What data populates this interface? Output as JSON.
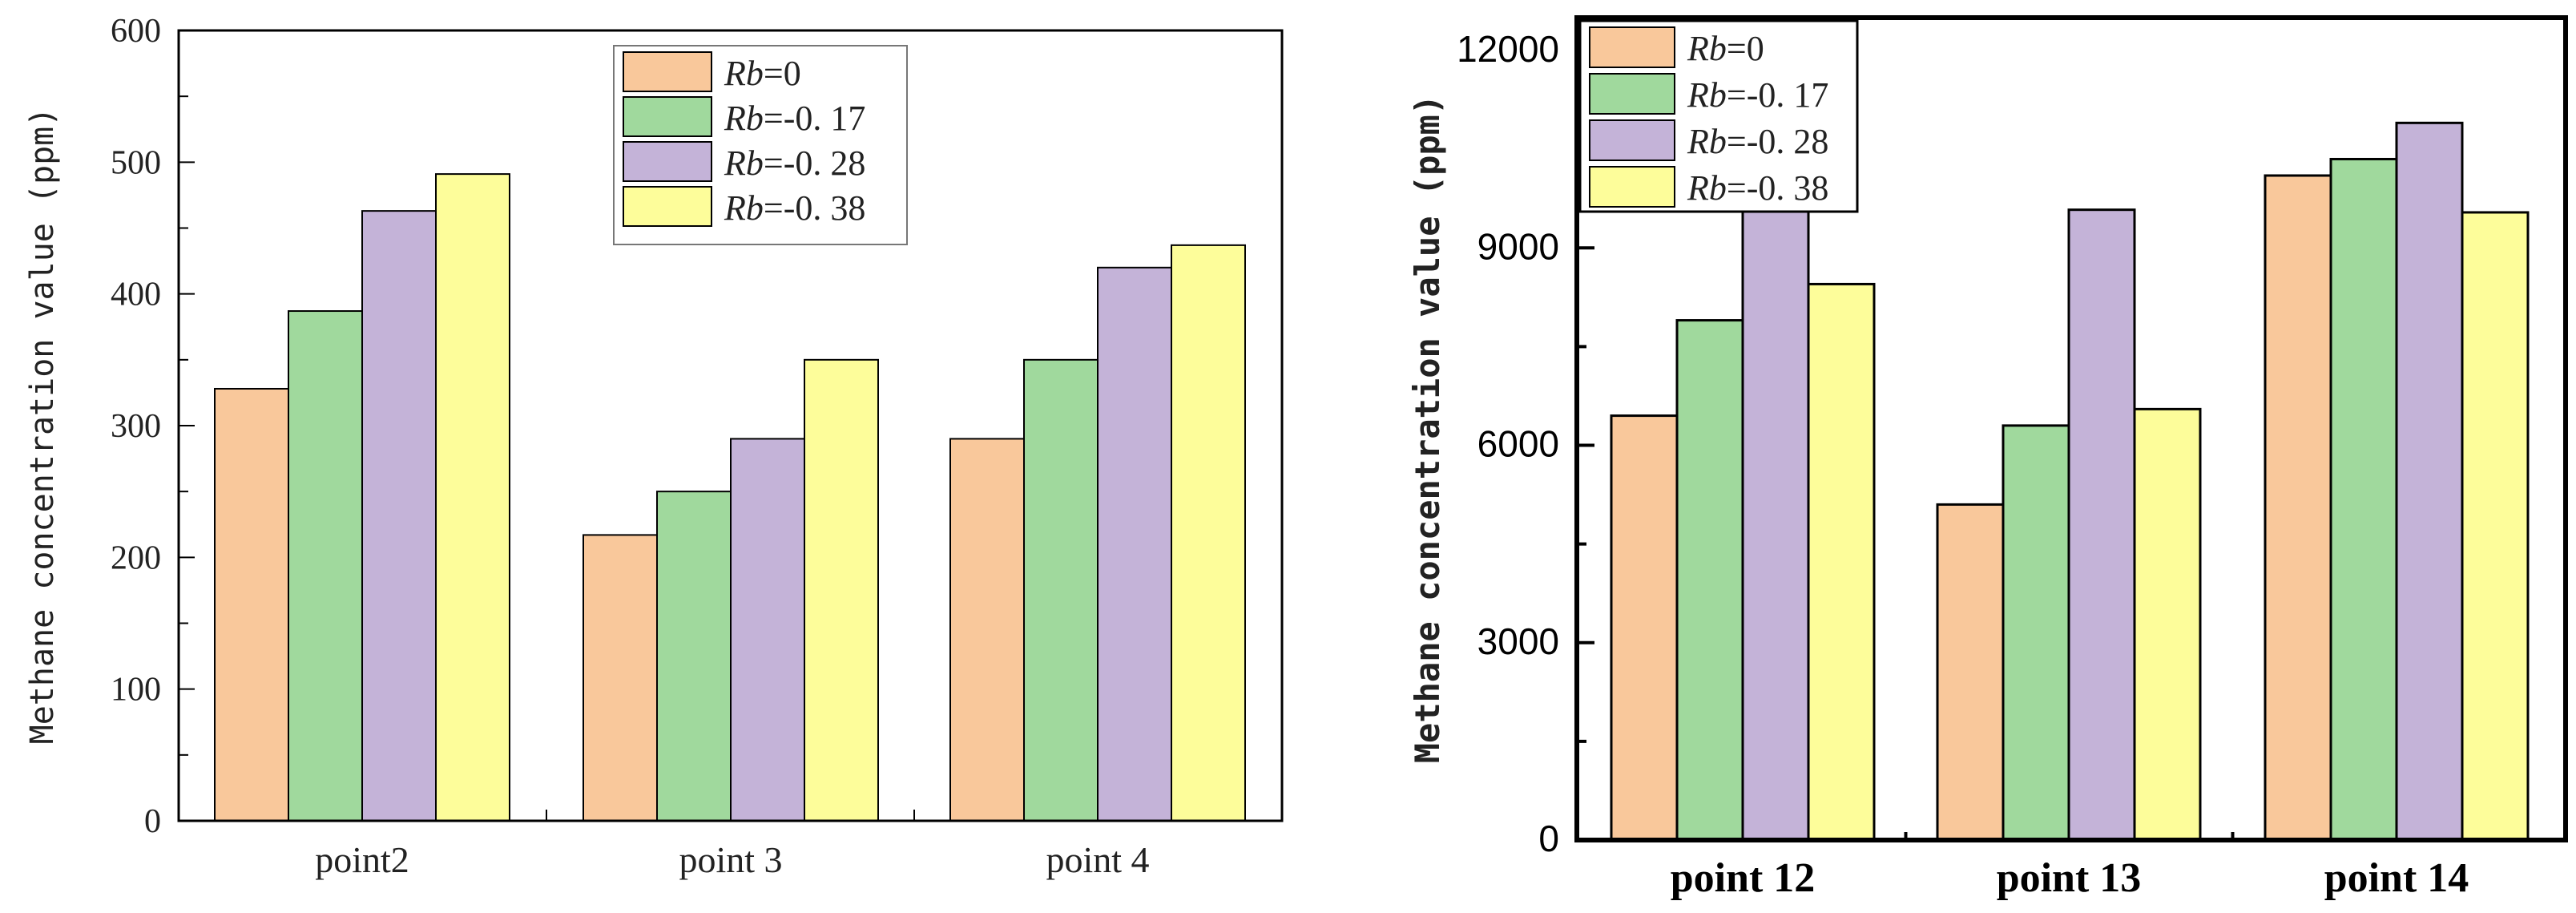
{
  "chart_data": [
    {
      "type": "bar",
      "title": "",
      "xlabel": "",
      "ylabel": "Methane concentration value (ppm)",
      "ylim": [
        0,
        600
      ],
      "yticks": [
        "0",
        "100",
        "200",
        "300",
        "400",
        "500",
        "600"
      ],
      "categories": [
        "point2",
        "point 3",
        "point 4"
      ],
      "series": [
        {
          "name": "Rb=0",
          "name_italic": "Rb",
          "name_rest": "=0",
          "color": "#f9c89b",
          "values": [
            328,
            217,
            290
          ]
        },
        {
          "name": "Rb=-0. 17",
          "name_italic": "Rb",
          "name_rest": "=-0. 17",
          "color": "#a0d99d",
          "values": [
            387,
            250,
            350
          ]
        },
        {
          "name": "Rb=-0. 28",
          "name_italic": "Rb",
          "name_rest": "=-0. 28",
          "color": "#c4b3d8",
          "values": [
            463,
            290,
            420
          ]
        },
        {
          "name": "Rb=-0. 38",
          "name_italic": "Rb",
          "name_rest": "=-0. 38",
          "color": "#fdfd9a",
          "values": [
            491,
            350,
            437
          ]
        }
      ],
      "legend_position": "top-center",
      "grid": false
    },
    {
      "type": "bar",
      "title": "",
      "xlabel": "",
      "ylabel": "Methane concentration value (ppm)",
      "ylim": [
        0,
        12500
      ],
      "yticks": [
        "0",
        "3000",
        "6000",
        "9000",
        "12000"
      ],
      "categories": [
        "point 12",
        "point 13",
        "point 14"
      ],
      "series": [
        {
          "name": "Rb=0",
          "name_italic": "Rb",
          "name_rest": "=0",
          "color": "#f9c89b",
          "values": [
            6450,
            5100,
            10100
          ]
        },
        {
          "name": "Rb=-0. 17",
          "name_italic": "Rb",
          "name_rest": "=-0. 17",
          "color": "#a0d99d",
          "values": [
            7900,
            6300,
            10350
          ]
        },
        {
          "name": "Rb=-0. 28",
          "name_italic": "Rb",
          "name_rest": "=-0. 28",
          "color": "#c4b3d8",
          "values": [
            9600,
            9580,
            10900
          ]
        },
        {
          "name": "Rb=-0. 38",
          "name_italic": "Rb",
          "name_rest": "=-0. 38",
          "color": "#fdfd9a",
          "values": [
            8450,
            6550,
            9540
          ]
        }
      ],
      "legend_position": "top-left",
      "grid": false
    }
  ]
}
